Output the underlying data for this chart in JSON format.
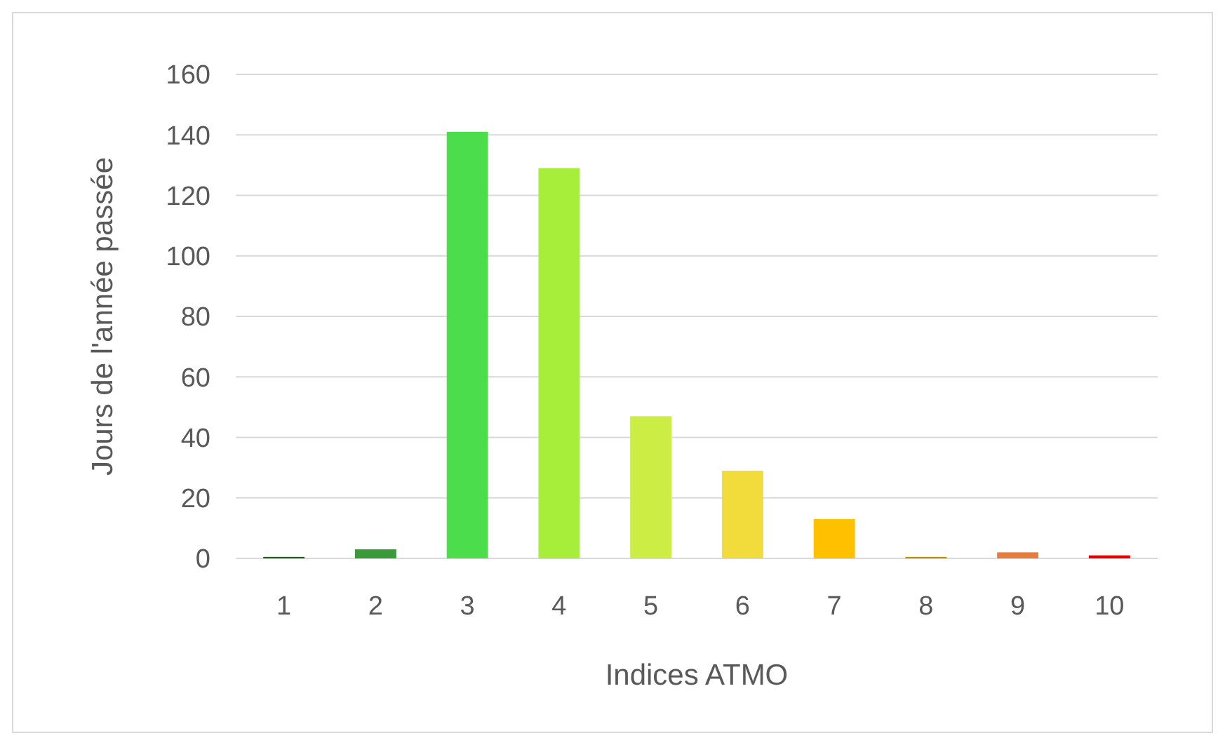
{
  "chart_data": {
    "type": "bar",
    "xlabel": "Indices ATMO",
    "ylabel": "Jours de l'année passée",
    "categories": [
      "1",
      "2",
      "3",
      "4",
      "5",
      "6",
      "7",
      "8",
      "9",
      "10"
    ],
    "values": [
      0.5,
      3,
      141,
      129,
      47,
      29,
      13,
      0.5,
      2,
      1
    ],
    "colors": [
      "#1e5c1e",
      "#3a9a3a",
      "#4cdd4c",
      "#a6ee3a",
      "#ccee44",
      "#f2dc3c",
      "#ffc000",
      "#c09000",
      "#e87a3a",
      "#e00000"
    ],
    "ylim": [
      0,
      160
    ],
    "yticks": [
      0,
      20,
      40,
      60,
      80,
      100,
      120,
      140,
      160
    ],
    "grid": "y"
  }
}
